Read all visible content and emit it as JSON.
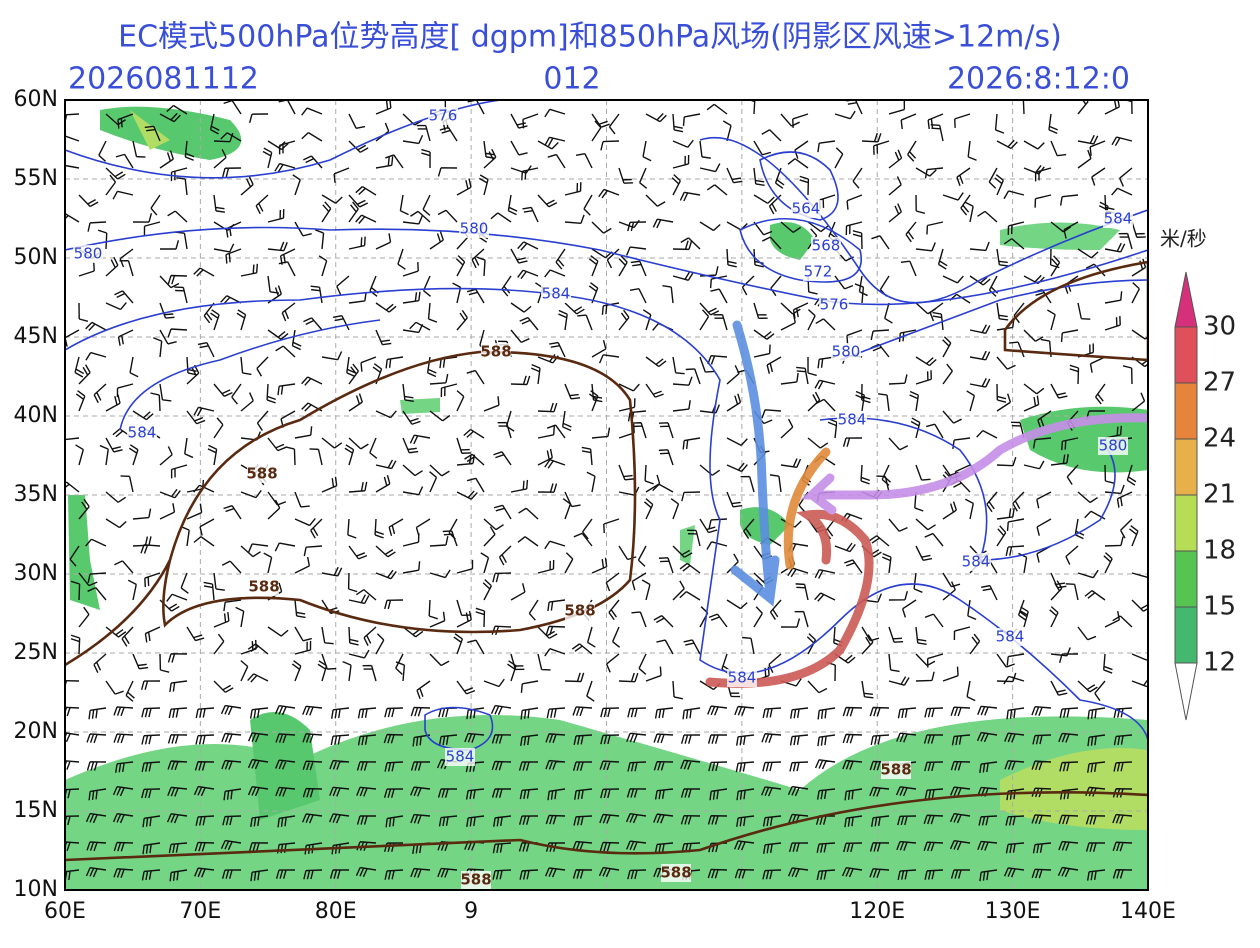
{
  "header": {
    "title": "EC模式500hPa位势高度[ dgpm]和850hPa风场(阴影区风速>12m/s)",
    "run": "2026081112",
    "lead": "012",
    "valid": "2026:8:12:0"
  },
  "axes": {
    "lat_labels": [
      "60N",
      "55N",
      "50N",
      "45N",
      "40N",
      "35N",
      "30N",
      "25N",
      "20N",
      "15N",
      "10N"
    ],
    "lon_labels": [
      "60E",
      "70E",
      "80E",
      "9",
      "120E",
      "130E",
      "140E"
    ]
  },
  "colorbar": {
    "unit": "米/秒",
    "labels": [
      "30",
      "27",
      "24",
      "21",
      "18",
      "15",
      "12"
    ]
  },
  "contour_labels": {
    "blue": [
      "576",
      "580",
      "580",
      "584",
      "584",
      "564",
      "568",
      "572",
      "576",
      "580",
      "584",
      "580",
      "584",
      "584",
      "584",
      "584",
      "584"
    ],
    "brown": [
      "588",
      "588",
      "588",
      "588",
      "588",
      "588",
      "588"
    ]
  }
}
